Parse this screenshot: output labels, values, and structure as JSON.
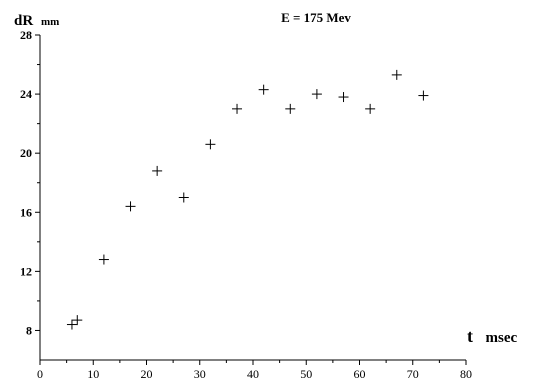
{
  "chart_data": {
    "type": "scatter",
    "title": "E = 175 Mev",
    "ylabel": "dR",
    "ylabel_unit": "mm",
    "xlabel": "t",
    "xlabel_unit": "msec",
    "xlim": [
      0,
      80
    ],
    "ylim": [
      6,
      28
    ],
    "xticks": [
      "0",
      "10",
      "20",
      "30",
      "40",
      "50",
      "60",
      "70",
      "80"
    ],
    "yticks": [
      "8",
      "12",
      "16",
      "20",
      "24",
      "28"
    ],
    "grid": false,
    "marker": "plus",
    "points": [
      {
        "x": 6,
        "y": 8.4
      },
      {
        "x": 7,
        "y": 8.7
      },
      {
        "x": 12,
        "y": 12.8
      },
      {
        "x": 17,
        "y": 16.4
      },
      {
        "x": 22,
        "y": 18.8
      },
      {
        "x": 27,
        "y": 17.0
      },
      {
        "x": 32,
        "y": 20.6
      },
      {
        "x": 37,
        "y": 23.0
      },
      {
        "x": 42,
        "y": 24.3
      },
      {
        "x": 47,
        "y": 23.0
      },
      {
        "x": 52,
        "y": 24.0
      },
      {
        "x": 57,
        "y": 23.8
      },
      {
        "x": 62,
        "y": 23.0
      },
      {
        "x": 67,
        "y": 25.3
      },
      {
        "x": 72,
        "y": 23.9
      }
    ]
  }
}
